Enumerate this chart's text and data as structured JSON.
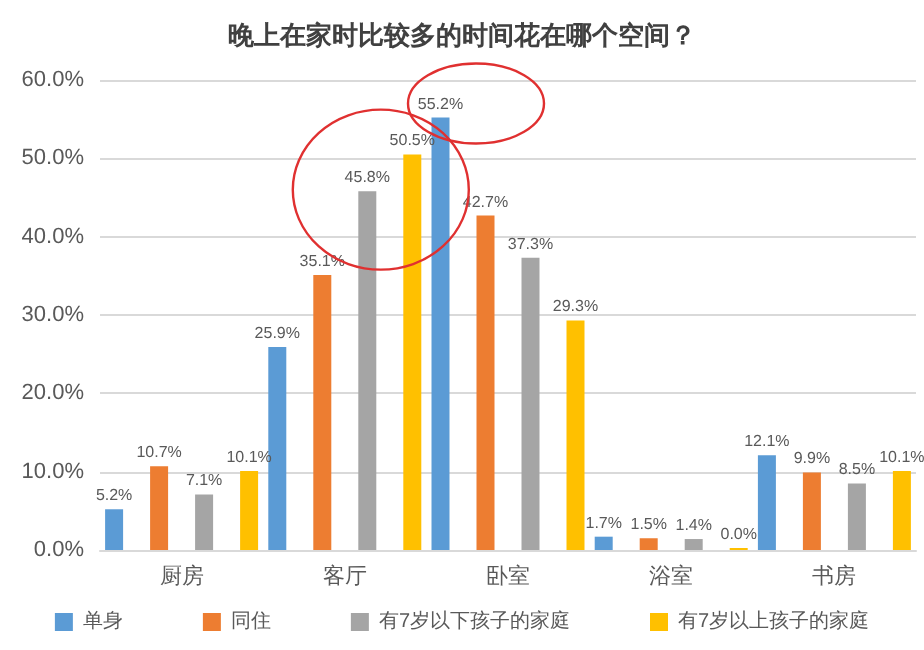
{
  "chart_data": {
    "type": "bar",
    "title": "晚上在家时比较多的时间花在哪个空间？",
    "categories": [
      "厨房",
      "客厅",
      "卧室",
      "浴室",
      "书房"
    ],
    "series": [
      {
        "name": "单身",
        "color": "#5b9bd5",
        "values": [
          5.2,
          25.9,
          55.2,
          1.7,
          12.1
        ],
        "value_labels": [
          "5.2%",
          "25.9%",
          "55.2%",
          "1.7%",
          "12.1%"
        ]
      },
      {
        "name": "同住",
        "color": "#ed7d31",
        "values": [
          10.7,
          35.1,
          42.7,
          1.5,
          9.9
        ],
        "value_labels": [
          "10.7%",
          "35.1%",
          "42.7%",
          "1.5%",
          "9.9%"
        ]
      },
      {
        "name": "有7岁以下孩子的家庭",
        "color": "#a5a5a5",
        "values": [
          7.1,
          45.8,
          37.3,
          1.4,
          8.5
        ],
        "value_labels": [
          "7.1%",
          "45.8%",
          "37.3%",
          "1.4%",
          "8.5%"
        ]
      },
      {
        "name": "有7岁以上孩子的家庭",
        "color": "#ffc000",
        "values": [
          10.1,
          50.5,
          29.3,
          0.0,
          10.1
        ],
        "value_labels": [
          "10.1%",
          "50.5%",
          "29.3%",
          "0.0%",
          "10.1%"
        ]
      }
    ],
    "ylim": [
      0,
      60
    ],
    "yticks": [
      {
        "value": 0,
        "label": "0.0%"
      },
      {
        "value": 10,
        "label": "10.0%"
      },
      {
        "value": 20,
        "label": "20.0%"
      },
      {
        "value": 30,
        "label": "30.0%"
      },
      {
        "value": 40,
        "label": "40.0%"
      },
      {
        "value": 50,
        "label": "50.0%"
      },
      {
        "value": 60,
        "label": "60.0%"
      }
    ],
    "grid": "y",
    "legend": "bottom"
  }
}
